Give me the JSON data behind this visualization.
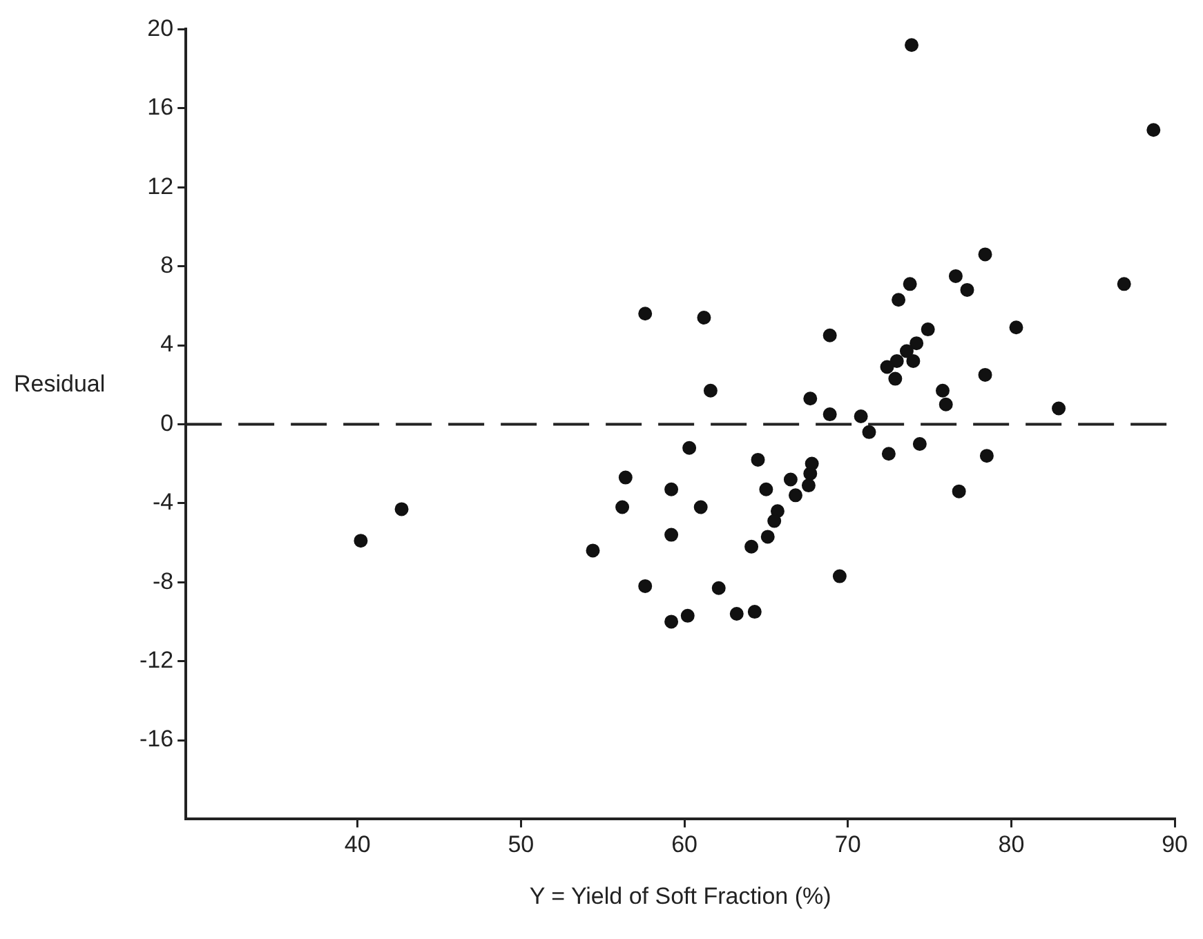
{
  "chart_data": {
    "type": "scatter",
    "xlabel": "Y = Yield of Soft Fraction (%)",
    "ylabel": "Residual",
    "xlim": [
      29.5,
      90
    ],
    "xticks": [
      40,
      50,
      60,
      70,
      80,
      90
    ],
    "ylim": [
      -20,
      20
    ],
    "yticks": [
      20,
      16,
      12,
      8,
      4,
      0,
      -4,
      -8,
      -12,
      -16
    ],
    "grid": false,
    "marker": "circle",
    "legend": false,
    "ref_lines": [
      {
        "axis": "y",
        "value": 0,
        "line_style": "dashed",
        "color": "#222222"
      }
    ],
    "series": [
      {
        "color": "#111111",
        "x": [
          57.6,
          73.9,
          88.7,
          78.4,
          76.6,
          77.3,
          73.8,
          73.1,
          86.9,
          61.2,
          68.9,
          74.9,
          80.3,
          74.2,
          73.6,
          73.0,
          74.0,
          72.4,
          72.9,
          78.4,
          61.6,
          67.7,
          75.8,
          76.0,
          68.9,
          70.8,
          82.9,
          71.3,
          60.3,
          72.5,
          74.4,
          78.5,
          64.5,
          67.8,
          67.7,
          66.5,
          67.6,
          65.0,
          59.2,
          66.8,
          76.8,
          61.0,
          65.7,
          65.5,
          59.2,
          65.1,
          64.1,
          69.5,
          62.1,
          63.2,
          64.3,
          60.2,
          59.2,
          40.2,
          42.7,
          54.4,
          56.4,
          56.2,
          57.6
        ],
        "values": [
          5.6,
          19.2,
          14.9,
          8.6,
          7.5,
          6.8,
          7.1,
          6.3,
          7.1,
          5.4,
          4.5,
          4.8,
          4.9,
          4.1,
          3.7,
          3.2,
          3.2,
          2.9,
          2.3,
          2.5,
          1.7,
          1.3,
          1.7,
          1.0,
          0.5,
          0.4,
          0.8,
          -0.4,
          -1.2,
          -1.5,
          -1.0,
          -1.6,
          -1.8,
          -2.0,
          -2.5,
          -2.8,
          -3.1,
          -3.3,
          -3.3,
          -3.6,
          -3.4,
          -4.2,
          -4.4,
          -4.9,
          -5.6,
          -5.7,
          -6.2,
          -7.7,
          -8.3,
          -9.6,
          -9.5,
          -9.7,
          -10.0,
          -5.9,
          -4.3,
          -6.4,
          -2.7,
          -4.2,
          -8.2
        ]
      }
    ]
  }
}
